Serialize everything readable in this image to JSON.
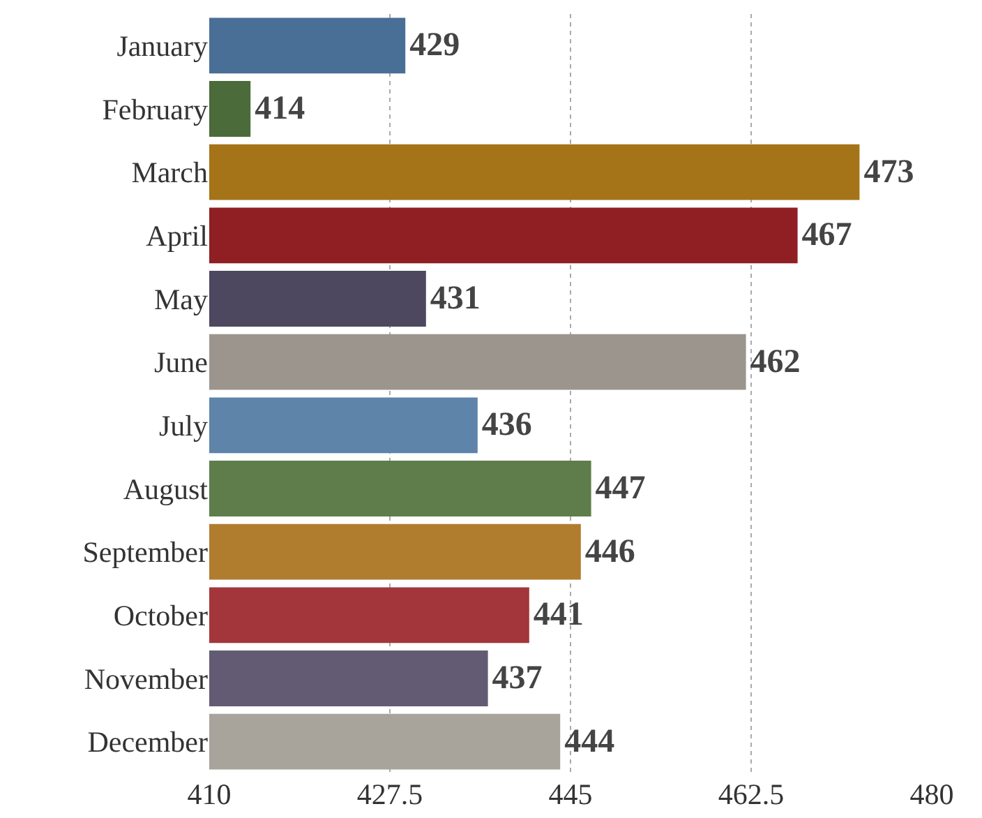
{
  "chart_data": {
    "type": "bar",
    "orientation": "horizontal",
    "categories": [
      "January",
      "February",
      "March",
      "April",
      "May",
      "June",
      "July",
      "August",
      "September",
      "October",
      "November",
      "December"
    ],
    "values": [
      429,
      414,
      473,
      467,
      431,
      462,
      436,
      447,
      446,
      441,
      437,
      444
    ],
    "colors": [
      "#4a6f96",
      "#4b6b3a",
      "#a57318",
      "#8f1f23",
      "#4d4860",
      "#9b958d",
      "#5e84a9",
      "#5e7d4b",
      "#b07d2e",
      "#a3363a",
      "#625b73",
      "#a8a49c"
    ],
    "xlim": [
      410,
      480
    ],
    "xticks": [
      410,
      427.5,
      445,
      462.5,
      480
    ],
    "grid": "x",
    "data_labels": true
  }
}
